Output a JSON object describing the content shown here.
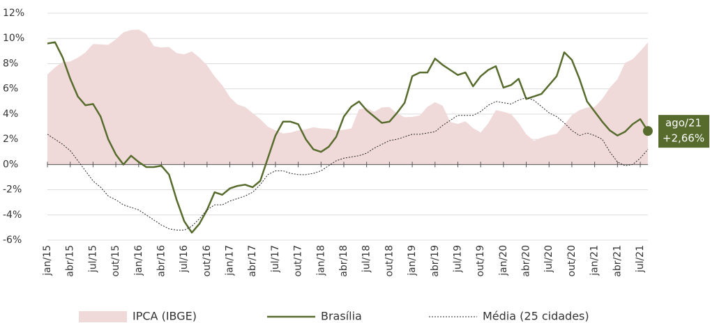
{
  "chart_data": {
    "type": "line",
    "categories": [
      "jan/15",
      null,
      null,
      "abr/15",
      null,
      null,
      "jul/15",
      null,
      null,
      "out/15",
      null,
      null,
      "jan/16",
      null,
      null,
      "abr/16",
      null,
      null,
      "jul/16",
      null,
      null,
      "out/16",
      null,
      null,
      "jan/17",
      null,
      null,
      "abr/17",
      null,
      null,
      "jul/17",
      null,
      null,
      "out/17",
      null,
      null,
      "jan/18",
      null,
      null,
      "abr/18",
      null,
      null,
      "jul/18",
      null,
      null,
      "out/18",
      null,
      null,
      "jan/19",
      null,
      null,
      "abr/19",
      null,
      null,
      "jul/19",
      null,
      null,
      "out/19",
      null,
      null,
      "jan/20",
      null,
      null,
      "abr/20",
      null,
      null,
      "jul/20",
      null,
      null,
      "out/20",
      null,
      null,
      "jan/21",
      null,
      null,
      "abr/21",
      null,
      null,
      "jul/21",
      null
    ],
    "series": [
      {
        "name": "IPCA (IBGE)",
        "color": "#f0d9d9",
        "style": "area",
        "values": [
          7.14,
          7.7,
          8.13,
          8.17,
          8.47,
          8.89,
          9.56,
          9.53,
          9.49,
          9.93,
          10.48,
          10.67,
          10.71,
          10.36,
          9.39,
          9.28,
          9.32,
          8.84,
          8.74,
          8.97,
          8.48,
          7.87,
          6.99,
          6.29,
          5.35,
          4.76,
          4.57,
          4.08,
          3.6,
          3.0,
          2.71,
          2.46,
          2.54,
          2.7,
          2.8,
          2.95,
          2.86,
          2.84,
          2.68,
          2.76,
          2.86,
          4.39,
          4.48,
          4.19,
          4.53,
          4.56,
          4.05,
          3.75,
          3.78,
          3.89,
          4.58,
          4.94,
          4.66,
          3.37,
          3.22,
          3.43,
          2.89,
          2.54,
          3.27,
          4.31,
          4.19,
          4.01,
          3.3,
          2.4,
          1.88,
          2.13,
          2.31,
          2.44,
          3.14,
          3.92,
          4.31,
          4.52,
          4.56,
          5.2,
          6.1,
          6.76,
          8.06,
          8.35,
          8.99,
          9.68
        ]
      },
      {
        "name": "Brasília",
        "color": "#566b2c",
        "style": "solid",
        "values": [
          9.6,
          9.7,
          8.5,
          6.8,
          5.4,
          4.7,
          4.8,
          3.8,
          2.0,
          0.8,
          0.0,
          0.7,
          0.2,
          -0.2,
          -0.2,
          -0.1,
          -0.8,
          -2.8,
          -4.5,
          -5.4,
          -4.7,
          -3.6,
          -2.2,
          -2.4,
          -1.9,
          -1.7,
          -1.6,
          -1.8,
          -1.3,
          0.5,
          2.3,
          3.4,
          3.4,
          3.2,
          2.0,
          1.2,
          1.0,
          1.4,
          2.2,
          3.8,
          4.6,
          5.0,
          4.3,
          3.8,
          3.3,
          3.4,
          4.1,
          4.9,
          7.0,
          7.3,
          7.3,
          8.4,
          7.9,
          7.5,
          7.1,
          7.3,
          6.2,
          7.0,
          7.5,
          7.8,
          6.1,
          6.3,
          6.8,
          5.2,
          5.4,
          5.6,
          6.3,
          7.0,
          8.9,
          8.3,
          6.8,
          5.0,
          4.2,
          3.4,
          2.7,
          2.3,
          2.6,
          3.2,
          3.6,
          2.66
        ]
      },
      {
        "name": "Média (25 cidades)",
        "color": "#222222",
        "style": "dotted",
        "values": [
          2.4,
          2.0,
          1.6,
          1.1,
          0.3,
          -0.5,
          -1.3,
          -1.8,
          -2.5,
          -2.8,
          -3.2,
          -3.4,
          -3.6,
          -4.0,
          -4.4,
          -4.8,
          -5.1,
          -5.2,
          -5.2,
          -4.9,
          -4.3,
          -3.6,
          -3.2,
          -3.2,
          -2.9,
          -2.7,
          -2.5,
          -2.2,
          -1.6,
          -0.8,
          -0.5,
          -0.5,
          -0.7,
          -0.8,
          -0.8,
          -0.7,
          -0.5,
          -0.1,
          0.3,
          0.5,
          0.6,
          0.7,
          0.9,
          1.3,
          1.6,
          1.9,
          2.0,
          2.2,
          2.4,
          2.4,
          2.5,
          2.6,
          3.1,
          3.5,
          3.9,
          3.9,
          3.9,
          4.2,
          4.7,
          5.0,
          4.9,
          4.8,
          5.1,
          5.3,
          5.1,
          4.6,
          4.1,
          3.8,
          3.3,
          2.7,
          2.3,
          2.5,
          2.3,
          2.0,
          1.0,
          0.2,
          -0.1,
          0.0,
          0.5,
          1.2
        ]
      }
    ],
    "ylim": [
      -6,
      12
    ],
    "yticks": [
      {
        "value": -6,
        "label": "-6%"
      },
      {
        "value": -4,
        "label": "-4%"
      },
      {
        "value": -2,
        "label": "-2%"
      },
      {
        "value": 0,
        "label": "0%"
      },
      {
        "value": 2,
        "label": "2%"
      },
      {
        "value": 4,
        "label": "4%"
      },
      {
        "value": 6,
        "label": "6%"
      },
      {
        "value": 8,
        "label": "8%"
      },
      {
        "value": 10,
        "label": "10%"
      },
      {
        "value": 12,
        "label": "12%"
      }
    ],
    "grid": true,
    "legend": "bottom",
    "annotation": [
      "ago/21",
      "+2,66%"
    ]
  }
}
